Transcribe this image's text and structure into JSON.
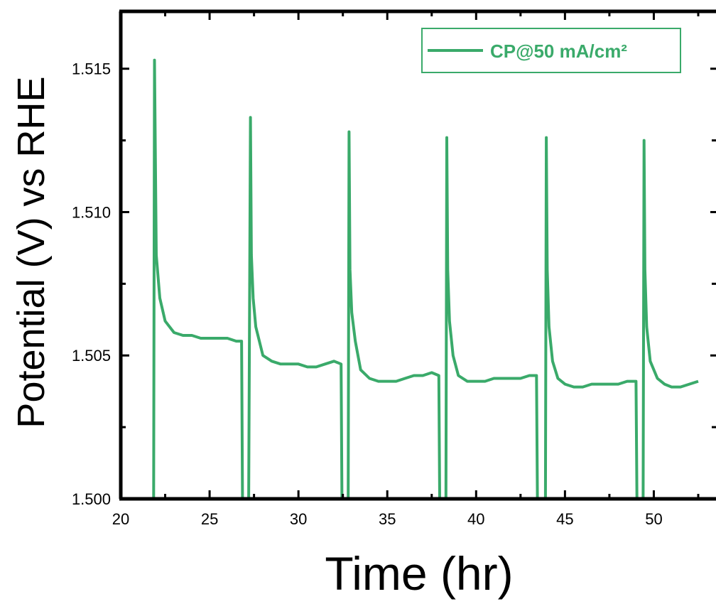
{
  "chart_data": {
    "type": "line",
    "xlabel": "Time (hr)",
    "ylabel": "Potential (V) vs RHE",
    "xlim": [
      20,
      53.5
    ],
    "ylim": [
      1.5,
      1.517
    ],
    "x_ticks": [
      20,
      25,
      30,
      35,
      40,
      45,
      50
    ],
    "x_tick_labels": [
      "20",
      "25",
      "30",
      "35",
      "40",
      "45",
      "50"
    ],
    "y_ticks": [
      1.5,
      1.505,
      1.51,
      1.515
    ],
    "y_tick_labels": [
      "1.500",
      "1.505",
      "1.510",
      "1.515"
    ],
    "grid": false,
    "legend_position": "top-right",
    "series": [
      {
        "name": "CP@50 mA/cm²",
        "color": "#3aaa6a",
        "x": [
          21.8,
          21.85,
          21.9,
          22.0,
          22.2,
          22.5,
          23.0,
          23.5,
          24.0,
          24.5,
          25.0,
          25.5,
          26.0,
          26.5,
          26.8,
          26.85,
          27.2,
          27.3,
          27.35,
          27.45,
          27.6,
          28.0,
          28.5,
          29.0,
          29.5,
          30.0,
          30.5,
          31.0,
          31.5,
          32.0,
          32.4,
          32.45,
          32.8,
          32.85,
          32.9,
          33.0,
          33.2,
          33.5,
          34.0,
          34.5,
          35.0,
          35.5,
          36.0,
          36.5,
          37.0,
          37.5,
          37.9,
          37.95,
          38.3,
          38.35,
          38.4,
          38.5,
          38.7,
          39.0,
          39.5,
          40.0,
          40.5,
          41.0,
          41.5,
          42.0,
          42.5,
          43.0,
          43.4,
          43.45,
          43.9,
          43.95,
          44.0,
          44.1,
          44.3,
          44.6,
          45.0,
          45.5,
          46.0,
          46.5,
          47.0,
          47.5,
          48.0,
          48.5,
          49.0,
          49.05,
          49.4,
          49.45,
          49.5,
          49.6,
          49.8,
          50.2,
          50.6,
          51.0,
          51.5,
          52.0,
          52.5
        ],
        "y": [
          1.5,
          1.5,
          1.5153,
          1.5085,
          1.507,
          1.5062,
          1.5058,
          1.5057,
          1.5057,
          1.5056,
          1.5056,
          1.5056,
          1.5056,
          1.5055,
          1.5055,
          1.5,
          1.5,
          1.5133,
          1.5085,
          1.507,
          1.506,
          1.505,
          1.5048,
          1.5047,
          1.5047,
          1.5047,
          1.5046,
          1.5046,
          1.5047,
          1.5048,
          1.5047,
          1.5,
          1.5,
          1.5128,
          1.508,
          1.5065,
          1.5055,
          1.5045,
          1.5042,
          1.5041,
          1.5041,
          1.5041,
          1.5042,
          1.5043,
          1.5043,
          1.5044,
          1.5043,
          1.5,
          1.5,
          1.5126,
          1.508,
          1.5062,
          1.505,
          1.5043,
          1.5041,
          1.5041,
          1.5041,
          1.5042,
          1.5042,
          1.5042,
          1.5042,
          1.5043,
          1.5043,
          1.5,
          1.5,
          1.5126,
          1.508,
          1.506,
          1.5048,
          1.5042,
          1.504,
          1.5039,
          1.5039,
          1.504,
          1.504,
          1.504,
          1.504,
          1.5041,
          1.5041,
          1.5,
          1.5,
          1.5125,
          1.508,
          1.506,
          1.5048,
          1.5042,
          1.504,
          1.5039,
          1.5039,
          1.504,
          1.5041
        ]
      }
    ]
  }
}
